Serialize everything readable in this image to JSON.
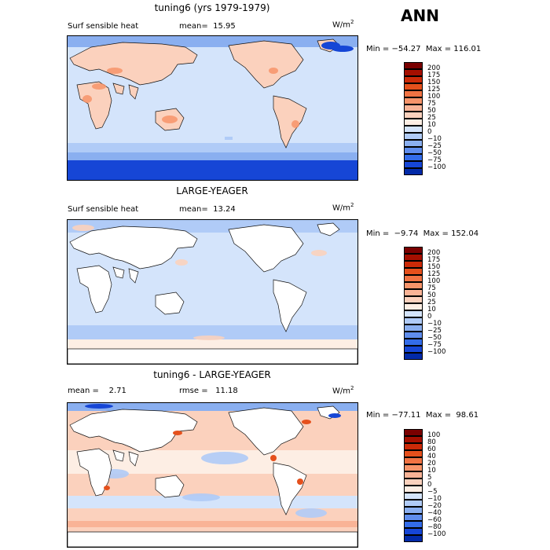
{
  "season": "ANN",
  "panels": [
    {
      "title": "tuning6 (yrs 1979-1979)",
      "left_text": "Surf sensible heat",
      "stat_text": "mean=  15.95",
      "unit": "W/m",
      "unit_sup": "2",
      "minmax": "Min = −54.27  Max = 116.01",
      "colorbar": {
        "labels": [
          "200",
          "175",
          "150",
          "125",
          "100",
          "75",
          "50",
          "25",
          "10",
          "0",
          "−10",
          "−25",
          "−50",
          "−75",
          "−100"
        ],
        "colors": [
          "#7a0000",
          "#a50f00",
          "#cb2a08",
          "#e5501c",
          "#f17343",
          "#f7946a",
          "#f9b396",
          "#fbd1bd",
          "#fdeee4",
          "#d4e4fb",
          "#b0cbf7",
          "#8aaff0",
          "#5f8ded",
          "#336ce9",
          "#1646d6",
          "#022aa8"
        ]
      }
    },
    {
      "title": "LARGE-YEAGER",
      "left_text": "Surf sensible heat",
      "stat_text": "mean=  13.24",
      "unit": "W/m",
      "unit_sup": "2",
      "minmax": "Min =  −9.74  Max = 152.04",
      "colorbar": {
        "labels": [
          "200",
          "175",
          "150",
          "125",
          "100",
          "75",
          "50",
          "25",
          "10",
          "0",
          "−10",
          "−25",
          "−50",
          "−75",
          "−100"
        ],
        "colors": [
          "#7a0000",
          "#a50f00",
          "#cb2a08",
          "#e5501c",
          "#f17343",
          "#f7946a",
          "#f9b396",
          "#fbd1bd",
          "#fdeee4",
          "#d4e4fb",
          "#b0cbf7",
          "#8aaff0",
          "#5f8ded",
          "#336ce9",
          "#1646d6",
          "#022aa8"
        ]
      }
    },
    {
      "title": "tuning6 - LARGE-YEAGER",
      "left_text": "mean =    2.71",
      "stat_text": "rmse =   11.18",
      "unit": "W/m",
      "unit_sup": "2",
      "minmax": "Min = −77.11  Max =  98.61",
      "colorbar": {
        "labels": [
          "100",
          "80",
          "60",
          "40",
          "20",
          "10",
          "5",
          "0",
          "−5",
          "−10",
          "−20",
          "−40",
          "−60",
          "−80",
          "−100"
        ],
        "colors": [
          "#7a0000",
          "#a50f00",
          "#cb2a08",
          "#e5501c",
          "#f17343",
          "#f7946a",
          "#f9b396",
          "#fbd1bd",
          "#fdeee4",
          "#d4e4fb",
          "#b0cbf7",
          "#8aaff0",
          "#5f8ded",
          "#336ce9",
          "#1646d6",
          "#022aa8"
        ]
      }
    }
  ]
}
